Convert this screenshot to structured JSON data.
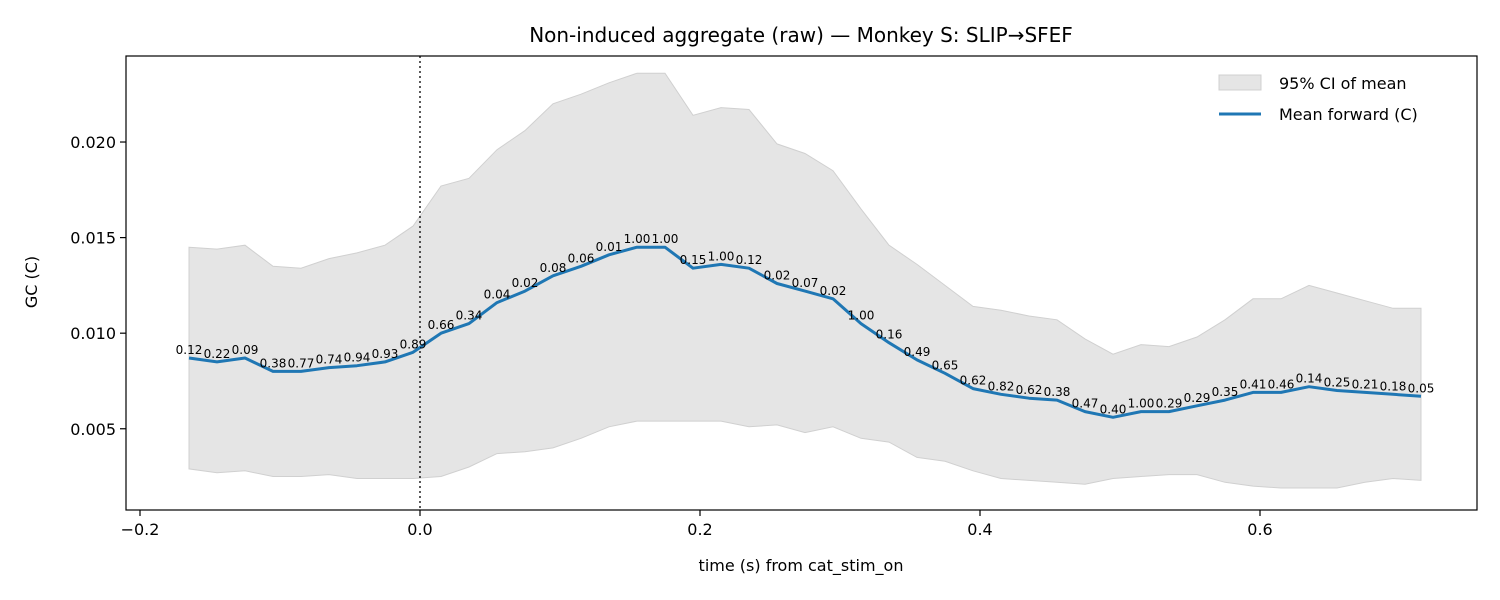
{
  "chart_data": {
    "type": "line",
    "title": "Non-induced aggregate (raw) — Monkey S: SLIP→SFEF",
    "xlabel": "time (s) from cat_stim_on",
    "ylabel": "GC (C)",
    "xlim": [
      -0.21,
      0.755
    ],
    "ylim": [
      0.00075,
      0.0245
    ],
    "xticks": [
      -0.2,
      0.0,
      0.2,
      0.4,
      0.6
    ],
    "xtick_labels": [
      "−0.2",
      "0.0",
      "0.2",
      "0.4",
      "0.6"
    ],
    "yticks": [
      0.005,
      0.01,
      0.015,
      0.02
    ],
    "ytick_labels": [
      "0.005",
      "0.010",
      "0.015",
      "0.020"
    ],
    "grid": false,
    "legend_position": "top-right",
    "vline_x": 0.0,
    "colors": {
      "mean": "#1f77b4",
      "ci_fill": "#e5e5e5",
      "ci_edge": "#d0d0d0"
    },
    "legend": [
      {
        "label": "95% CI of mean",
        "kind": "patch"
      },
      {
        "label": "Mean forward (C)",
        "kind": "line"
      }
    ],
    "x": [
      -0.165,
      -0.145,
      -0.125,
      -0.105,
      -0.085,
      -0.065,
      -0.045,
      -0.025,
      -0.005,
      0.015,
      0.035,
      0.055,
      0.075,
      0.095,
      0.115,
      0.135,
      0.155,
      0.175,
      0.195,
      0.215,
      0.235,
      0.255,
      0.275,
      0.295,
      0.315,
      0.335,
      0.355,
      0.375,
      0.395,
      0.415,
      0.435,
      0.455,
      0.475,
      0.495,
      0.515,
      0.535,
      0.555,
      0.575,
      0.595,
      0.615,
      0.635,
      0.655,
      0.675,
      0.695,
      0.715
    ],
    "series": [
      {
        "name": "Mean forward (C)",
        "values": [
          0.0087,
          0.0085,
          0.0087,
          0.008,
          0.008,
          0.0082,
          0.0083,
          0.0085,
          0.009,
          0.01,
          0.0105,
          0.0116,
          0.0122,
          0.013,
          0.0135,
          0.0141,
          0.0145,
          0.0145,
          0.0134,
          0.0136,
          0.0134,
          0.0126,
          0.0122,
          0.0118,
          0.0105,
          0.0095,
          0.0086,
          0.0079,
          0.0071,
          0.0068,
          0.0066,
          0.0065,
          0.0059,
          0.0056,
          0.0059,
          0.0059,
          0.0062,
          0.0065,
          0.0069,
          0.0069,
          0.0072,
          0.007,
          0.0069,
          0.0068,
          0.0067
        ]
      }
    ],
    "ci_upper": [
      0.0145,
      0.0144,
      0.0146,
      0.0135,
      0.0134,
      0.0139,
      0.0142,
      0.0146,
      0.0156,
      0.0177,
      0.0181,
      0.0196,
      0.0206,
      0.022,
      0.0225,
      0.0231,
      0.0236,
      0.0236,
      0.0214,
      0.0218,
      0.0217,
      0.0199,
      0.0194,
      0.0185,
      0.0165,
      0.0146,
      0.0136,
      0.0125,
      0.0114,
      0.0112,
      0.0109,
      0.0107,
      0.0097,
      0.0089,
      0.0094,
      0.0093,
      0.0098,
      0.0107,
      0.0118,
      0.0118,
      0.0125,
      0.0121,
      0.0117,
      0.0113,
      0.0113
    ],
    "ci_lower": [
      0.0029,
      0.0027,
      0.0028,
      0.0025,
      0.0025,
      0.0026,
      0.0024,
      0.0024,
      0.0024,
      0.0025,
      0.003,
      0.0037,
      0.0038,
      0.004,
      0.0045,
      0.0051,
      0.0054,
      0.0054,
      0.0054,
      0.0054,
      0.0051,
      0.0052,
      0.0048,
      0.0051,
      0.0045,
      0.0043,
      0.0035,
      0.0033,
      0.0028,
      0.0024,
      0.0023,
      0.0022,
      0.0021,
      0.0024,
      0.0025,
      0.0026,
      0.0026,
      0.0022,
      0.002,
      0.0019,
      0.0019,
      0.0019,
      0.0022,
      0.0024,
      0.0023
    ],
    "point_labels": [
      "0.12",
      "0.22",
      "0.09",
      "0.38",
      "0.77",
      "0.74",
      "0.94",
      "0.93",
      "0.89",
      "0.66",
      "0.34",
      "0.04",
      "0.02",
      "0.08",
      "0.06",
      "0.01",
      "1.00",
      "1.00",
      "0.15",
      "1.00",
      "0.12",
      "0.02",
      "0.07",
      "0.02",
      "1.00",
      "0.16",
      "0.49",
      "0.65",
      "0.62",
      "0.82",
      "0.62",
      "0.38",
      "0.47",
      "0.40",
      "1.00",
      "0.29",
      "0.29",
      "0.35",
      "0.41",
      "0.46",
      "0.14",
      "0.25",
      "0.21",
      "0.18",
      "0.05"
    ]
  }
}
